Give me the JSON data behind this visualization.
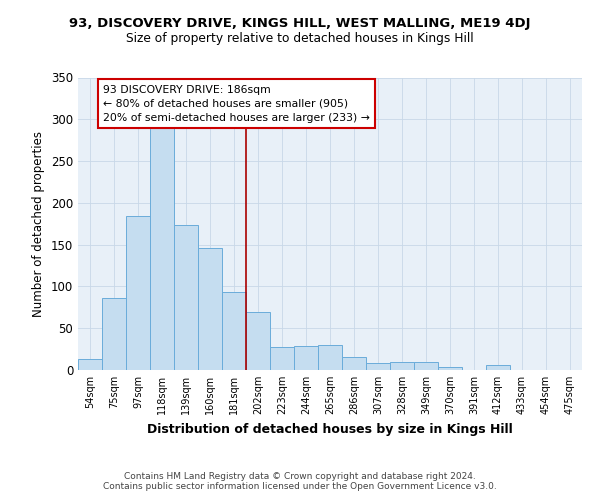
{
  "title1": "93, DISCOVERY DRIVE, KINGS HILL, WEST MALLING, ME19 4DJ",
  "title2": "Size of property relative to detached houses in Kings Hill",
  "xlabel": "Distribution of detached houses by size in Kings Hill",
  "ylabel": "Number of detached properties",
  "footnote1": "Contains HM Land Registry data © Crown copyright and database right 2024.",
  "footnote2": "Contains public sector information licensed under the Open Government Licence v3.0.",
  "annotation_line1": "93 DISCOVERY DRIVE: 186sqm",
  "annotation_line2": "← 80% of detached houses are smaller (905)",
  "annotation_line3": "20% of semi-detached houses are larger (233) →",
  "bar_labels": [
    "54sqm",
    "75sqm",
    "97sqm",
    "118sqm",
    "139sqm",
    "160sqm",
    "181sqm",
    "202sqm",
    "223sqm",
    "244sqm",
    "265sqm",
    "286sqm",
    "307sqm",
    "328sqm",
    "349sqm",
    "370sqm",
    "391sqm",
    "412sqm",
    "433sqm",
    "454sqm",
    "475sqm"
  ],
  "bar_values": [
    13,
    86,
    184,
    290,
    173,
    146,
    93,
    69,
    27,
    29,
    30,
    15,
    8,
    10,
    10,
    3,
    0,
    6,
    0,
    0,
    0
  ],
  "bar_color": "#c5ddf0",
  "bar_edgecolor": "#6aacda",
  "vline_x": 6.5,
  "vline_color": "#aa0000",
  "grid_color": "#c8d8e8",
  "bg_color": "#e8f0f8",
  "annotation_box_color": "#cc0000",
  "ylim": [
    0,
    350
  ],
  "yticks": [
    0,
    50,
    100,
    150,
    200,
    250,
    300,
    350
  ]
}
